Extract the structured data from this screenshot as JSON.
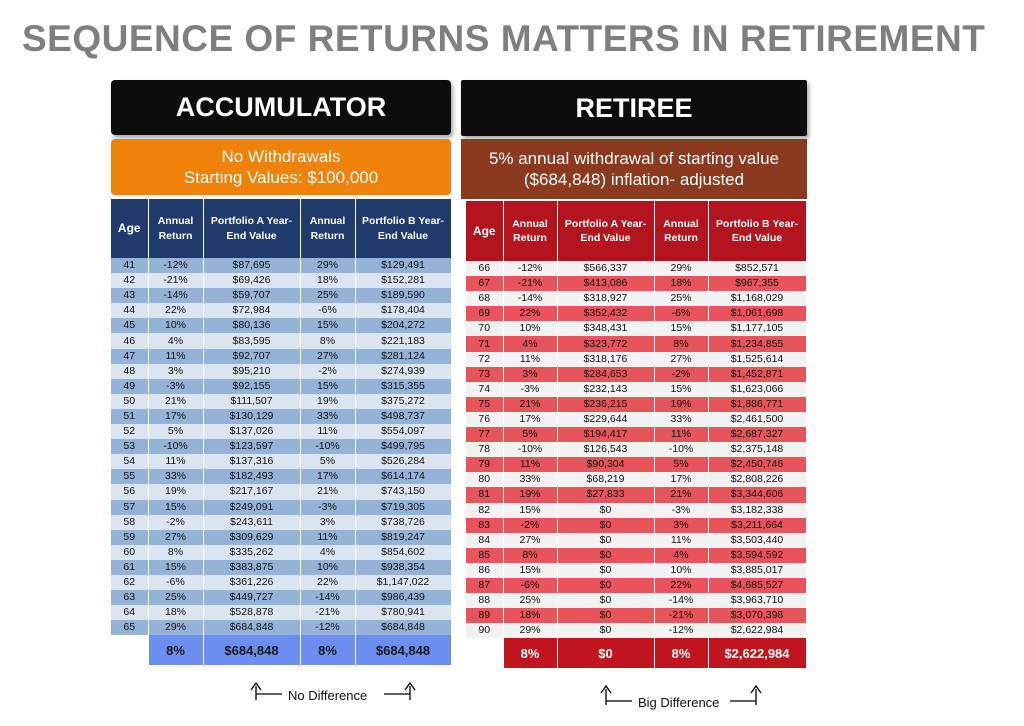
{
  "title": "SEQUENCE OF RETURNS MATTERS IN RETIREMENT",
  "accumulator": {
    "banner": "ACCUMULATOR",
    "subtitle_line1": "No Withdrawals",
    "subtitle_line2": "Starting Values: $100,000",
    "headers": {
      "age": "Age",
      "return_a": "Annual Return",
      "value_a": "Portfolio A Year-End Value",
      "return_b": "Annual Return",
      "value_b": "Portfolio B Year-End Value"
    },
    "rows": [
      [
        "41",
        "-12%",
        "$87,695",
        "29%",
        "$129,491"
      ],
      [
        "42",
        "-21%",
        "$69,426",
        "18%",
        "$152,281"
      ],
      [
        "43",
        "-14%",
        "$59,707",
        "25%",
        "$189,590"
      ],
      [
        "44",
        "22%",
        "$72,984",
        "-6%",
        "$178,404"
      ],
      [
        "45",
        "10%",
        "$80,136",
        "15%",
        "$204,272"
      ],
      [
        "46",
        "4%",
        "$83,595",
        "8%",
        "$221,183"
      ],
      [
        "47",
        "11%",
        "$92,707",
        "27%",
        "$281,124"
      ],
      [
        "48",
        "3%",
        "$95,210",
        "-2%",
        "$274,939"
      ],
      [
        "49",
        "-3%",
        "$92,155",
        "15%",
        "$315,355"
      ],
      [
        "50",
        "21%",
        "$111,507",
        "19%",
        "$375,272"
      ],
      [
        "51",
        "17%",
        "$130,129",
        "33%",
        "$498,737"
      ],
      [
        "52",
        "5%",
        "$137,026",
        "11%",
        "$554,097"
      ],
      [
        "53",
        "-10%",
        "$123,597",
        "-10%",
        "$499,795"
      ],
      [
        "54",
        "11%",
        "$137,316",
        "5%",
        "$526,284"
      ],
      [
        "55",
        "33%",
        "$182,493",
        "17%",
        "$614,174"
      ],
      [
        "56",
        "19%",
        "$217,167",
        "21%",
        "$743,150"
      ],
      [
        "57",
        "15%",
        "$249,091",
        "-3%",
        "$719,305"
      ],
      [
        "58",
        "-2%",
        "$243,611",
        "3%",
        "$738,726"
      ],
      [
        "59",
        "27%",
        "$309,629",
        "11%",
        "$819,247"
      ],
      [
        "60",
        "8%",
        "$335,262",
        "4%",
        "$854,602"
      ],
      [
        "61",
        "15%",
        "$383,875",
        "10%",
        "$938,354"
      ],
      [
        "62",
        "-6%",
        "$361,226",
        "22%",
        "$1,147,022"
      ],
      [
        "63",
        "25%",
        "$449,727",
        "-14%",
        "$986,439"
      ],
      [
        "64",
        "18%",
        "$528,878",
        "-21%",
        "$780,941"
      ],
      [
        "65",
        "29%",
        "$684,848",
        "-12%",
        "$684,848"
      ]
    ],
    "footer": {
      "return_a": "8%",
      "value_a": "$684,848",
      "return_b": "8%",
      "value_b": "$684,848"
    },
    "note": "No Difference"
  },
  "retiree": {
    "banner": "RETIREE",
    "subtitle_line1": "5% annual withdrawal of starting value",
    "subtitle_line2": "($684,848) inflation- adjusted",
    "headers": {
      "age": "Age",
      "return_a": "Annual Return",
      "value_a": "Portfolio A Year-End Value",
      "return_b": "Annual Return",
      "value_b": "Portfolio B Year-End Value"
    },
    "rows": [
      [
        "66",
        "-12%",
        "$566,337",
        "29%",
        "$852,571"
      ],
      [
        "67",
        "-21%",
        "$413,086",
        "18%",
        "$967,355"
      ],
      [
        "68",
        "-14%",
        "$318,927",
        "25%",
        "$1,168,029"
      ],
      [
        "69",
        "22%",
        "$352,432",
        "-6%",
        "$1,061,698"
      ],
      [
        "70",
        "10%",
        "$348,431",
        "15%",
        "$1,177,105"
      ],
      [
        "71",
        "4%",
        "$323,772",
        "8%",
        "$1,234,855"
      ],
      [
        "72",
        "11%",
        "$318,176",
        "27%",
        "$1,525,614"
      ],
      [
        "73",
        "3%",
        "$284,653",
        "-2%",
        "$1,452,871"
      ],
      [
        "74",
        "-3%",
        "$232,143",
        "15%",
        "$1,623,066"
      ],
      [
        "75",
        "21%",
        "$236,215",
        "19%",
        "$1,886,771"
      ],
      [
        "76",
        "17%",
        "$229,644",
        "33%",
        "$2,461,500"
      ],
      [
        "77",
        "5%",
        "$194,417",
        "11%",
        "$2,687,327"
      ],
      [
        "78",
        "-10%",
        "$126,543",
        "-10%",
        "$2,375,148"
      ],
      [
        "79",
        "11%",
        "$90,304",
        "5%",
        "$2,450,746"
      ],
      [
        "80",
        "33%",
        "$68,219",
        "17%",
        "$2,808,226"
      ],
      [
        "81",
        "19%",
        "$27,833",
        "21%",
        "$3,344,606"
      ],
      [
        "82",
        "15%",
        "$0",
        "-3%",
        "$3,182,338"
      ],
      [
        "83",
        "-2%",
        "$0",
        "3%",
        "$3,211,664"
      ],
      [
        "84",
        "27%",
        "$0",
        "11%",
        "$3,503,440"
      ],
      [
        "85",
        "8%",
        "$0",
        "4%",
        "$3,594,592"
      ],
      [
        "86",
        "15%",
        "$0",
        "10%",
        "$3,885,017"
      ],
      [
        "87",
        "-6%",
        "$0",
        "22%",
        "$4,685,527"
      ],
      [
        "88",
        "25%",
        "$0",
        "-14%",
        "$3,963,710"
      ],
      [
        "89",
        "18%",
        "$0",
        "-21%",
        "$3,070,398"
      ],
      [
        "90",
        "29%",
        "$0",
        "-12%",
        "$2,622,984"
      ]
    ],
    "footer": {
      "return_a": "8%",
      "value_a": "$0",
      "return_b": "8%",
      "value_b": "$2,622,984"
    },
    "note": "Big Difference"
  }
}
